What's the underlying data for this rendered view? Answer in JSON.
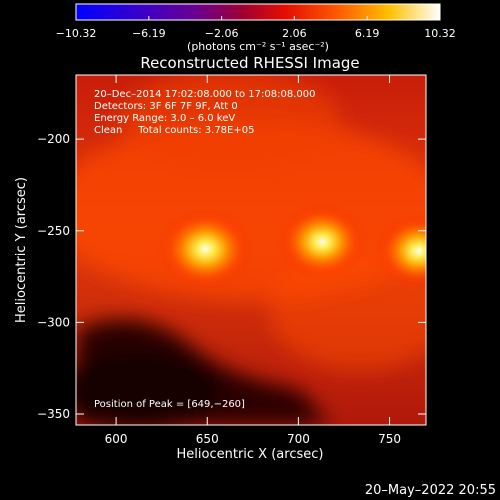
{
  "chart_data": {
    "type": "heatmap",
    "title": "Reconstructed RHESSI Image",
    "xlabel": "Heliocentric X (arcsec)",
    "ylabel": "Heliocentric Y (arcsec)",
    "xlim": [
      578,
      770
    ],
    "ylim": [
      -356,
      -165
    ],
    "x_ticks": [
      600,
      650,
      700,
      750
    ],
    "y_ticks": [
      -200,
      -250,
      -300,
      -350
    ],
    "x_tick_labels": [
      "600",
      "650",
      "700",
      "750"
    ],
    "y_tick_labels": [
      "−200",
      "−250",
      "−300",
      "−350"
    ],
    "colorbar": {
      "range": [
        -10.32,
        10.32
      ],
      "tick_labels": [
        "−10.32",
        "−6.19",
        "−2.06",
        "2.06",
        "6.19",
        "10.32"
      ],
      "tick_values": [
        -10.32,
        -6.19,
        -2.06,
        2.06,
        6.19,
        10.32
      ],
      "unit_label": "(photons cm⁻² s⁻¹ asec⁻²)",
      "colormap": "blue-purple-red-yellow-white"
    },
    "annotations": [
      "20–Dec–2014 17:02:08.000 to 17:08:08.000",
      "Detectors: 3F 6F 7F 9F, Att 0",
      "Energy Range: 3.0 – 6.0 keV",
      "Clean     Total counts: 3.78E+05"
    ],
    "peak_label": "Position of Peak = [649,−260]",
    "sources": [
      {
        "x": 649,
        "y": -260,
        "level": 1.0
      },
      {
        "x": 713,
        "y": -256,
        "level": 0.93
      },
      {
        "x": 766,
        "y": -261,
        "level": 0.9
      }
    ]
  },
  "footer": {
    "timestamp": "20–May–2022 20:55"
  },
  "colors": {
    "background": "#000000",
    "text": "#ffffff"
  }
}
